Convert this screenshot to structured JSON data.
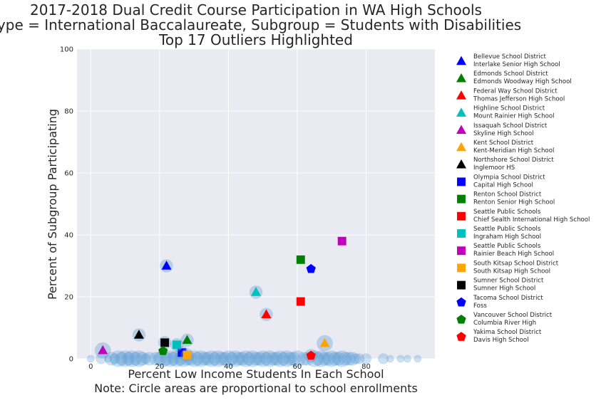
{
  "chart_data": {
    "type": "scatter",
    "title": [
      "2017-2018 Dual Credit Course Participation in WA High Schools",
      "Type = International Baccalaureate, Subgroup = Students with Disabilities",
      "Top 17 Outliers Highlighted"
    ],
    "xlabel": [
      "Percent Low Income Students In Each School",
      "Note: Circle areas are proportional to school enrollments"
    ],
    "ylabel": "Percent of Subgroup Participating",
    "xlim": [
      -4,
      100
    ],
    "ylim": [
      0,
      100
    ],
    "x_ticks": [
      "0",
      "20",
      "40",
      "60",
      "80"
    ],
    "x_tick_values": [
      0,
      20,
      40,
      60,
      80
    ],
    "y_ticks": [
      "0",
      "20",
      "40",
      "60",
      "80",
      "100"
    ],
    "y_tick_values": [
      0,
      20,
      40,
      60,
      80,
      100
    ],
    "grid": true,
    "legend_position": "outside right",
    "background_points": {
      "color": "#5b9bd5",
      "x": [
        0,
        3,
        5,
        6,
        7,
        8,
        9,
        10,
        11,
        12,
        13,
        14,
        15,
        16,
        17,
        19,
        20,
        21,
        22,
        23,
        24,
        25,
        26,
        27,
        28,
        29,
        30,
        31,
        32,
        33,
        34,
        35,
        36,
        37,
        38,
        39,
        40,
        41,
        42,
        43,
        44,
        45,
        46,
        47,
        48,
        49,
        50,
        51,
        52,
        53,
        54,
        55,
        56,
        57,
        58,
        59,
        60,
        62,
        63,
        65,
        66,
        67,
        68,
        69,
        70,
        71,
        72,
        73,
        74,
        75,
        76,
        77,
        78,
        80,
        85,
        87,
        90,
        92,
        95
      ],
      "y": [
        0,
        0,
        0,
        0,
        0,
        0,
        0,
        0,
        0,
        0,
        0,
        0,
        0,
        0,
        0,
        0,
        0,
        0,
        0,
        0,
        0,
        0,
        0,
        0,
        0,
        0,
        0,
        0,
        0,
        0,
        0,
        0,
        0,
        0,
        0,
        0,
        0,
        0,
        0,
        0,
        0,
        0,
        0,
        0,
        0,
        0,
        0,
        0,
        0,
        0,
        0,
        0,
        0,
        0,
        0,
        0,
        0,
        0,
        0,
        0,
        0,
        0,
        0,
        0,
        0,
        0,
        0,
        0,
        0,
        0,
        0,
        0,
        0,
        0,
        0,
        0,
        0,
        0,
        0
      ],
      "size": [
        1,
        2,
        1,
        3,
        2,
        4,
        3,
        4,
        3,
        4,
        3,
        4,
        3,
        2,
        3,
        3,
        3,
        4,
        3,
        4,
        3,
        4,
        3,
        4,
        3,
        3,
        4,
        3,
        4,
        3,
        3,
        4,
        3,
        4,
        3,
        3,
        4,
        3,
        4,
        3,
        3,
        4,
        3,
        4,
        3,
        3,
        4,
        3,
        4,
        3,
        3,
        4,
        3,
        4,
        3,
        3,
        4,
        3,
        3,
        4,
        3,
        4,
        3,
        3,
        4,
        3,
        3,
        4,
        3,
        3,
        3,
        2,
        2,
        2,
        2,
        1,
        1,
        1,
        1
      ]
    },
    "series": [
      {
        "name": "Bellevue School District\nInterlake Senior High School",
        "marker": "triangle",
        "color": "#0000ff",
        "x": 22,
        "y": 30,
        "size": 3
      },
      {
        "name": "Edmonds School District\nEdmonds Woodway High School",
        "marker": "triangle",
        "color": "#008000",
        "x": 28,
        "y": 6,
        "size": 3
      },
      {
        "name": "Federal Way School District\nThomas Jefferson High School",
        "marker": "triangle",
        "color": "#ff0000",
        "x": 51,
        "y": 14.3,
        "size": 3
      },
      {
        "name": "Highline School District\nMount Rainier High School",
        "marker": "triangle",
        "color": "#00bfbf",
        "x": 48,
        "y": 21.5,
        "size": 3
      },
      {
        "name": "Issaquah School District\nSkyline High School",
        "marker": "triangle",
        "color": "#bf00bf",
        "x": 3.5,
        "y": 2.7,
        "size": 4
      },
      {
        "name": "Kent School District\nKent-Meridian High School",
        "marker": "triangle",
        "color": "#ffa500",
        "x": 68,
        "y": 5,
        "size": 4
      },
      {
        "name": "Northshore School District\nInglemoor HS",
        "marker": "triangle",
        "color": "#000000",
        "x": 14,
        "y": 7.7,
        "size": 3
      },
      {
        "name": "Olympia School District\nCapital High School",
        "marker": "square",
        "color": "#0000ff",
        "x": 26.5,
        "y": 2,
        "size": 3
      },
      {
        "name": "Renton School District\nRenton Senior High School",
        "marker": "square",
        "color": "#008000",
        "x": 61,
        "y": 32,
        "size": 0
      },
      {
        "name": "Seattle Public Schools\nChief Sealth International High School",
        "marker": "square",
        "color": "#ff0000",
        "x": 61,
        "y": 18.5,
        "size": 0
      },
      {
        "name": "Seattle Public Schools\nIngraham High School",
        "marker": "square",
        "color": "#00bfbf",
        "x": 25,
        "y": 4.5,
        "size": 3
      },
      {
        "name": "Seattle Public Schools\nRainier Beach High School",
        "marker": "square",
        "color": "#bf00bf",
        "x": 73,
        "y": 38,
        "size": 0
      },
      {
        "name": "South Kitsap School District\nSouth Kitsap High School",
        "marker": "square",
        "color": "#ffa500",
        "x": 28,
        "y": 1.2,
        "size": 3
      },
      {
        "name": "Sumner School District\nSumner High School",
        "marker": "square",
        "color": "#000000",
        "x": 21.5,
        "y": 5.2,
        "size": 3
      },
      {
        "name": "Tacoma School District\nFoss",
        "marker": "pentagon",
        "color": "#0000ff",
        "x": 64,
        "y": 29,
        "size": 0
      },
      {
        "name": "Vancouver School District\nColumbia River High",
        "marker": "pentagon",
        "color": "#008000",
        "x": 21,
        "y": 2.5,
        "size": 0
      },
      {
        "name": "Yakima School District\nDavis High School",
        "marker": "pentagon",
        "color": "#ff0000",
        "x": 64,
        "y": 1,
        "size": 3
      }
    ]
  }
}
